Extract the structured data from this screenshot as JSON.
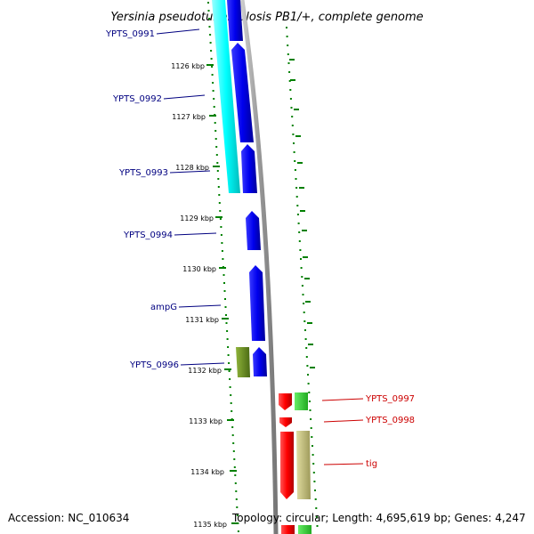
{
  "title": "Yersinia pseudotuberculosis PB1/+, complete genome",
  "footer": {
    "accession": "Accession: NC_010634",
    "topology": "Topology: circular; Length: 4,695,619 bp; Genes: 4,247"
  },
  "colors": {
    "forward_gene": "#0000ee",
    "forward_block": "#00ffff",
    "olive_block": "#6b8e23",
    "reverse_gene": "#ff0000",
    "reverse_green": "#33cc33",
    "reverse_block": "#bdb76b",
    "backbone": "#999999",
    "dots": "#008000",
    "forward_label": "#000080",
    "reverse_label": "#cc0000"
  },
  "ticks": [
    "1126 kbp",
    "1127 kbp",
    "1128 kbp",
    "1129 kbp",
    "1130 kbp",
    "1131 kbp",
    "1132 kbp",
    "1133 kbp",
    "1134 kbp",
    "1135 kbp"
  ],
  "labels_forward": [
    "YPTS_0991",
    "YPTS_0992",
    "YPTS_0993",
    "YPTS_0994",
    "ampG",
    "YPTS_0996"
  ],
  "labels_reverse": [
    "YPTS_0997",
    "YPTS_0998",
    "tig"
  ]
}
